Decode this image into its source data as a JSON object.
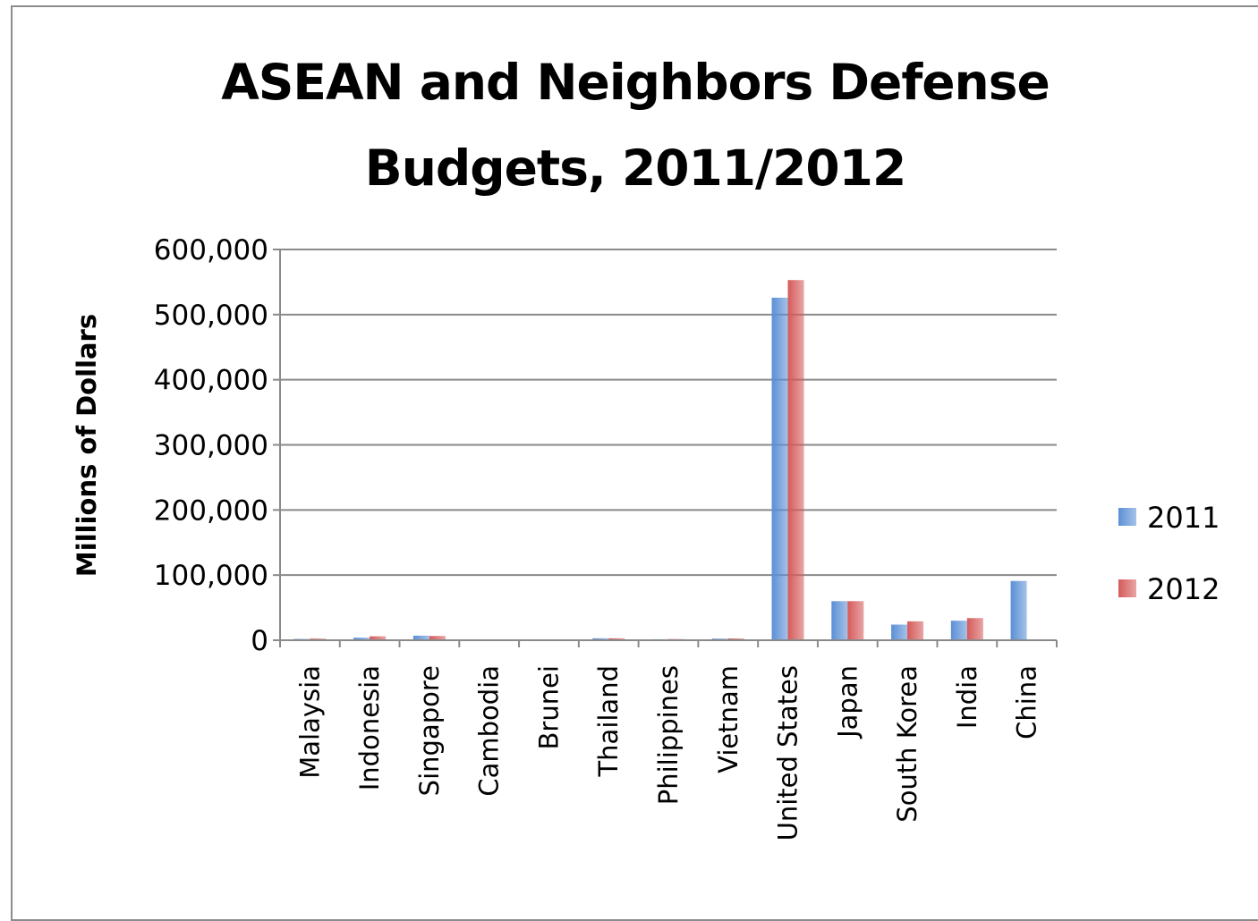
{
  "chart_data": {
    "type": "bar",
    "title_lines": [
      "ASEAN and Neighbors Defense",
      "Budgets, 2011/2012"
    ],
    "ylabel": "Millions  of Dollars",
    "xlabel": "",
    "ylim": [
      0,
      600000
    ],
    "yticks": [
      0,
      100000,
      200000,
      300000,
      400000,
      500000,
      600000
    ],
    "ytick_labels": [
      "0",
      "100,000",
      "200,000",
      "300,000",
      "400,000",
      "500,000",
      "600,000"
    ],
    "grid": true,
    "legend_position": "right",
    "categories": [
      "Malaysia",
      "Indonesia",
      "Singapore",
      "Cambodia",
      "Brunei",
      "Thailand",
      "Philippines",
      "Vietnam",
      "United States",
      "Japan",
      "South Korea",
      "India",
      "China"
    ],
    "series": [
      {
        "name": "2011",
        "color": "#5b8fd6",
        "values": [
          2000,
          4000,
          7000,
          200,
          400,
          3000,
          1500,
          2500,
          526000,
          60000,
          24000,
          30000,
          91000
        ]
      },
      {
        "name": "2012",
        "color": "#d55a5a",
        "values": [
          2500,
          6000,
          6500,
          200,
          400,
          3000,
          1800,
          2700,
          553000,
          60000,
          29000,
          34000,
          0
        ]
      }
    ]
  }
}
